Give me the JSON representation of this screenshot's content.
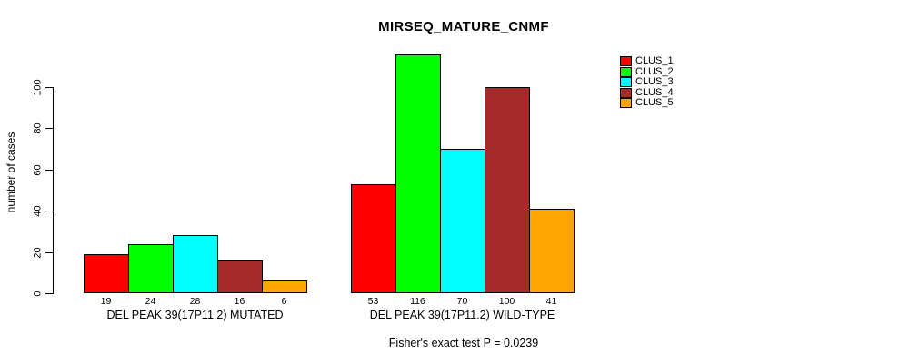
{
  "chart_data": {
    "type": "bar",
    "title": "MIRSEQ_MATURE_CNMF",
    "ylabel": "number of cases",
    "xlabel": "",
    "ylim": [
      0,
      116
    ],
    "yticks": [
      0,
      20,
      40,
      60,
      80,
      100
    ],
    "grid": false,
    "legend_position": "top-right",
    "background_color": "#ffffff",
    "bar_border_color": "#000000",
    "series": [
      {
        "name": "CLUS_1",
        "color": "#ff0000"
      },
      {
        "name": "CLUS_2",
        "color": "#00ff00"
      },
      {
        "name": "CLUS_3",
        "color": "#00ffff"
      },
      {
        "name": "CLUS_4",
        "color": "#a52a2a"
      },
      {
        "name": "CLUS_5",
        "color": "#ffa500"
      }
    ],
    "groups": [
      {
        "label": "DEL PEAK 39(17P11.2) MUTATED",
        "values": [
          19,
          24,
          28,
          16,
          6
        ]
      },
      {
        "label": "DEL PEAK 39(17P11.2) WILD-TYPE",
        "values": [
          53,
          116,
          70,
          100,
          41
        ]
      }
    ],
    "bar_value_labels_shown": true,
    "annotation": "Fisher's exact test P = 0.0239"
  }
}
